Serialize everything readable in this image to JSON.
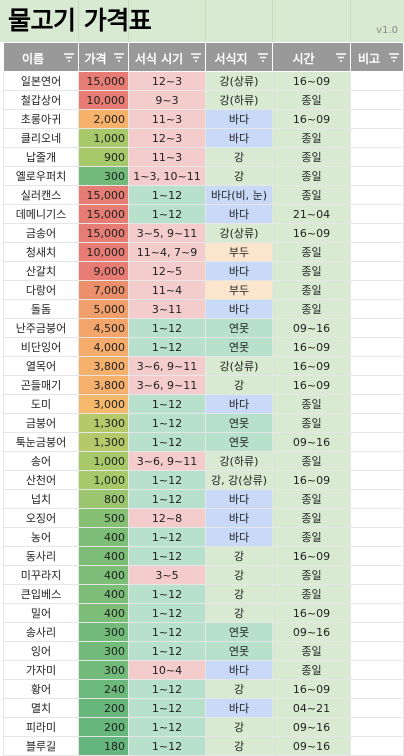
{
  "sheet": {
    "title": "물고기 가격표",
    "version": "v1.0",
    "headers": [
      "이름",
      "가격",
      "서식 시기",
      "서식지",
      "시간",
      "비고"
    ]
  },
  "colors": {
    "header_bg": "#999999",
    "title_bg": "#d9ead3",
    "habitat": {
      "강(상류)": "#d9ead3",
      "강(하류)": "#d9ead3",
      "강": "#d9ead3",
      "바다": "#c9daf8",
      "바다(비, 눈)": "#c9daf8",
      "부두": "#fce5cd",
      "연못": "#b7e1cd",
      "강, 강(상류)": "#d9ead3"
    },
    "season_year_round": "#b7e1cd",
    "season_partial": "#f4cccc"
  },
  "rows": [
    {
      "name": "일본연어",
      "price": "15,000",
      "season": "12~3",
      "habitat": "강(상류)",
      "time": "16~09",
      "note": "",
      "price_color": "#e67c73"
    },
    {
      "name": "철갑상어",
      "price": "10,000",
      "season": "9~3",
      "habitat": "강(하류)",
      "time": "종일",
      "note": "",
      "price_color": "#e67c73"
    },
    {
      "name": "초롱아귀",
      "price": "2,000",
      "season": "11~3",
      "habitat": "바다",
      "time": "16~09",
      "note": "",
      "price_color": "#f6b26b"
    },
    {
      "name": "클리오네",
      "price": "1,000",
      "season": "12~3",
      "habitat": "바다",
      "time": "종일",
      "note": "",
      "price_color": "#a8c96a"
    },
    {
      "name": "납줄개",
      "price": "900",
      "season": "11~3",
      "habitat": "강",
      "time": "종일",
      "note": "",
      "price_color": "#a8c96a"
    },
    {
      "name": "옐로우퍼치",
      "price": "300",
      "season": "1~3, 10~11",
      "habitat": "강",
      "time": "종일",
      "note": "",
      "price_color": "#72bb7a"
    },
    {
      "name": "실러캔스",
      "price": "15,000",
      "season": "1~12",
      "habitat": "바다(비, 눈)",
      "time": "종일",
      "note": "",
      "price_color": "#e67c73"
    },
    {
      "name": "데메니기스",
      "price": "15,000",
      "season": "1~12",
      "habitat": "바다",
      "time": "21~04",
      "note": "",
      "price_color": "#e67c73"
    },
    {
      "name": "금송어",
      "price": "15,000",
      "season": "3~5, 9~11",
      "habitat": "강(상류)",
      "time": "16~09",
      "note": "",
      "price_color": "#e67c73"
    },
    {
      "name": "청새치",
      "price": "10,000",
      "season": "11~4, 7~9",
      "habitat": "부두",
      "time": "종일",
      "note": "",
      "price_color": "#e67c73"
    },
    {
      "name": "산갈치",
      "price": "9,000",
      "season": "12~5",
      "habitat": "바다",
      "time": "종일",
      "note": "",
      "price_color": "#e67c73"
    },
    {
      "name": "다랑어",
      "price": "7,000",
      "season": "11~4",
      "habitat": "부두",
      "time": "종일",
      "note": "",
      "price_color": "#ec8f6b"
    },
    {
      "name": "돌돔",
      "price": "5,000",
      "season": "3~11",
      "habitat": "바다",
      "time": "종일",
      "note": "",
      "price_color": "#f1a06c"
    },
    {
      "name": "난주금붕어",
      "price": "4,500",
      "season": "1~12",
      "habitat": "연못",
      "time": "09~16",
      "note": "",
      "price_color": "#f3a56c"
    },
    {
      "name": "비단잉어",
      "price": "4,000",
      "season": "1~12",
      "habitat": "연못",
      "time": "16~09",
      "note": "",
      "price_color": "#f5ab6c"
    },
    {
      "name": "열목어",
      "price": "3,800",
      "season": "3~6, 9~11",
      "habitat": "강(상류)",
      "time": "16~09",
      "note": "",
      "price_color": "#f5b06c"
    },
    {
      "name": "곤들매기",
      "price": "3,800",
      "season": "3~6, 9~11",
      "habitat": "강",
      "time": "16~09",
      "note": "",
      "price_color": "#f5b06c"
    },
    {
      "name": "도미",
      "price": "3,000",
      "season": "1~12",
      "habitat": "바다",
      "time": "종일",
      "note": "",
      "price_color": "#f6b96b"
    },
    {
      "name": "금붕어",
      "price": "1,300",
      "season": "1~12",
      "habitat": "연못",
      "time": "종일",
      "note": "",
      "price_color": "#b5c86a"
    },
    {
      "name": "툭눈금붕어",
      "price": "1,300",
      "season": "1~12",
      "habitat": "연못",
      "time": "09~16",
      "note": "",
      "price_color": "#b5c86a"
    },
    {
      "name": "송어",
      "price": "1,000",
      "season": "3~6, 9~11",
      "habitat": "강(하류)",
      "time": "종일",
      "note": "",
      "price_color": "#a8c96a"
    },
    {
      "name": "산천어",
      "price": "1,000",
      "season": "1~12",
      "habitat": "강, 강(상류)",
      "time": "16~09",
      "note": "",
      "price_color": "#a8c96a"
    },
    {
      "name": "넙치",
      "price": "800",
      "season": "1~12",
      "habitat": "바다",
      "time": "종일",
      "note": "",
      "price_color": "#9cc56f"
    },
    {
      "name": "오징어",
      "price": "500",
      "season": "12~8",
      "habitat": "바다",
      "time": "종일",
      "note": "",
      "price_color": "#86c075"
    },
    {
      "name": "농어",
      "price": "400",
      "season": "1~12",
      "habitat": "바다",
      "time": "종일",
      "note": "",
      "price_color": "#7cbd77"
    },
    {
      "name": "동사리",
      "price": "400",
      "season": "1~12",
      "habitat": "강",
      "time": "16~09",
      "note": "",
      "price_color": "#7cbd77"
    },
    {
      "name": "미꾸라지",
      "price": "400",
      "season": "3~5",
      "habitat": "강",
      "time": "종일",
      "note": "",
      "price_color": "#7cbd77"
    },
    {
      "name": "큰입베스",
      "price": "400",
      "season": "1~12",
      "habitat": "강",
      "time": "종일",
      "note": "",
      "price_color": "#7cbd77"
    },
    {
      "name": "밀어",
      "price": "400",
      "season": "1~12",
      "habitat": "강",
      "time": "16~09",
      "note": "",
      "price_color": "#7cbd77"
    },
    {
      "name": "송사리",
      "price": "300",
      "season": "1~12",
      "habitat": "연못",
      "time": "09~16",
      "note": "",
      "price_color": "#72bb7a"
    },
    {
      "name": "잉어",
      "price": "300",
      "season": "1~12",
      "habitat": "연못",
      "time": "종일",
      "note": "",
      "price_color": "#72bb7a"
    },
    {
      "name": "가자미",
      "price": "300",
      "season": "10~4",
      "habitat": "바다",
      "time": "종일",
      "note": "",
      "price_color": "#72bb7a"
    },
    {
      "name": "황어",
      "price": "240",
      "season": "1~12",
      "habitat": "강",
      "time": "16~09",
      "note": "",
      "price_color": "#6cb97c"
    },
    {
      "name": "멸치",
      "price": "200",
      "season": "1~12",
      "habitat": "바다",
      "time": "04~21",
      "note": "",
      "price_color": "#67b77d"
    },
    {
      "name": "피라미",
      "price": "200",
      "season": "1~12",
      "habitat": "강",
      "time": "09~16",
      "note": "",
      "price_color": "#67b77d"
    },
    {
      "name": "블루길",
      "price": "180",
      "season": "1~12",
      "habitat": "강",
      "time": "09~16",
      "note": "",
      "price_color": "#64b67e"
    }
  ]
}
